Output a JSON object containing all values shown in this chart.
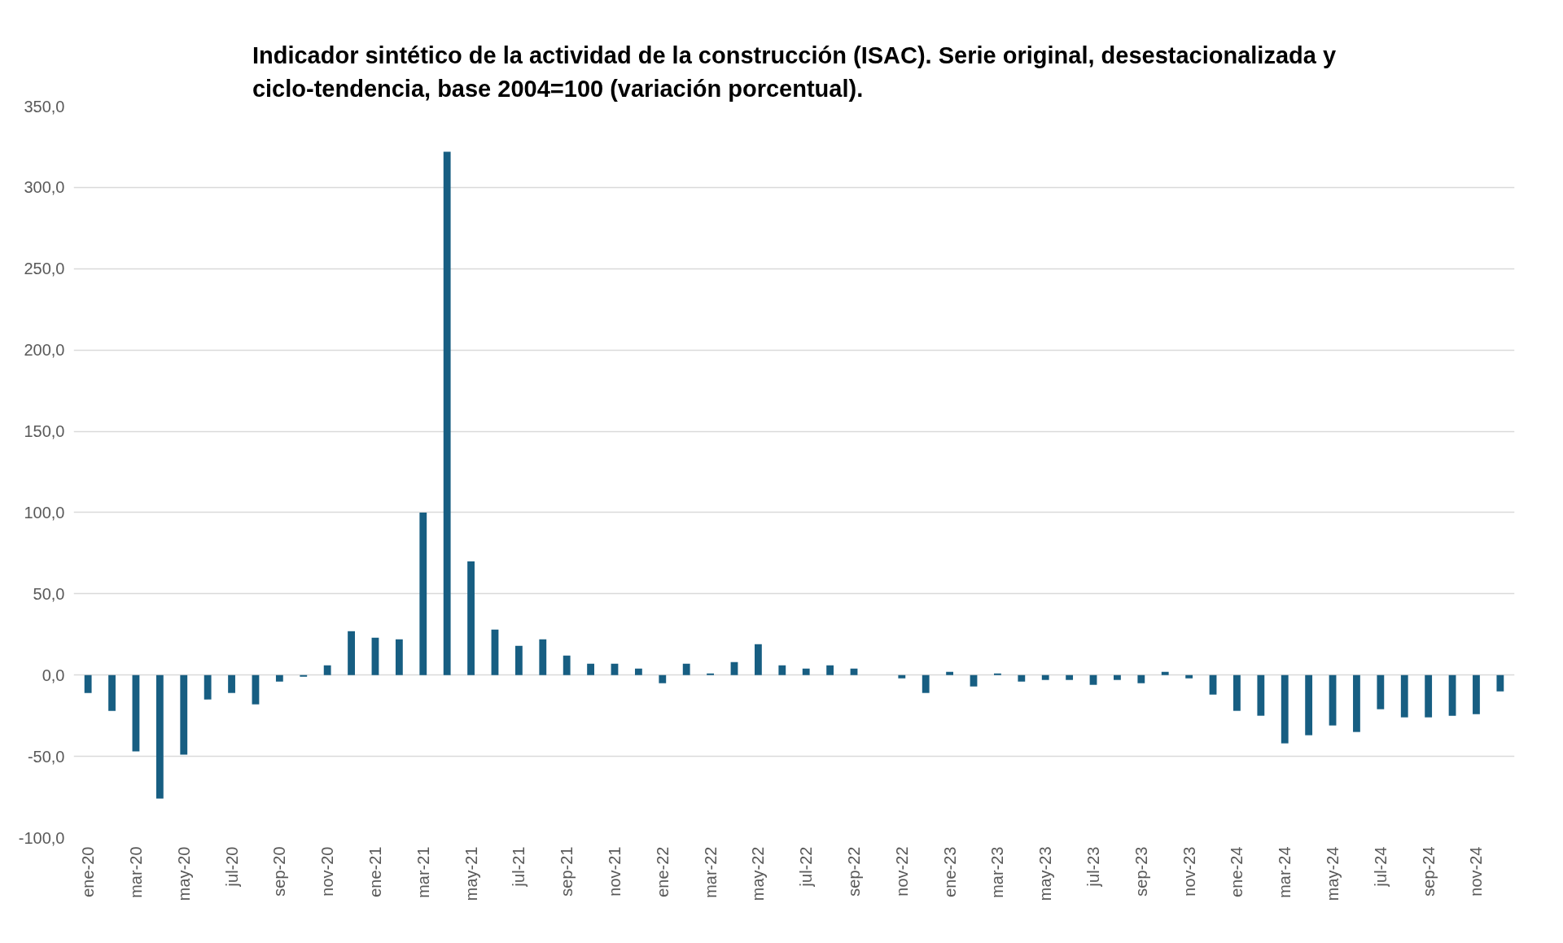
{
  "chart_data": {
    "type": "bar",
    "title": "Indicador sintético de la actividad de la construcción (ISAC). Serie original, desestacionalizada y ciclo-tendencia, base 2004=100 (variación porcentual).",
    "categories": [
      "ene-20",
      null,
      "mar-20",
      null,
      "may-20",
      null,
      "jul-20",
      null,
      "sep-20",
      null,
      "nov-20",
      null,
      "ene-21",
      null,
      "mar-21",
      null,
      "may-21",
      null,
      "jul-21",
      null,
      "sep-21",
      null,
      "nov-21",
      null,
      "ene-22",
      null,
      "mar-22",
      null,
      "may-22",
      null,
      "jul-22",
      null,
      "sep-22",
      null,
      "nov-22",
      null,
      "ene-23",
      null,
      "mar-23",
      null,
      "may-23",
      null,
      "jul-23",
      null,
      "sep-23",
      null,
      "nov-23",
      null,
      "ene-24",
      null,
      "mar-24",
      null,
      "may-24",
      null,
      "jul-24",
      null,
      "sep-24",
      null,
      "nov-24",
      null
    ],
    "values": [
      -11,
      -22,
      -47,
      -76,
      -49,
      -15,
      -11,
      -18,
      -4,
      -1,
      6,
      27,
      23,
      22,
      100,
      322,
      70,
      28,
      18,
      22,
      12,
      7,
      7,
      4,
      -5,
      7,
      1,
      8,
      19,
      6,
      4,
      6,
      4,
      0,
      -2,
      -11,
      2,
      -7,
      1,
      -4,
      -3,
      -3,
      -6,
      -3,
      -5,
      2,
      -2,
      -12,
      -22,
      -25,
      -42,
      -37,
      -31,
      -35,
      -21,
      -26,
      -26,
      -25,
      -24,
      -10
    ],
    "color": "#175e82",
    "ylim": [
      -100,
      350
    ],
    "yticks": [
      {
        "value": -100,
        "label": "-100,0"
      },
      {
        "value": -50,
        "label": "-50,0"
      },
      {
        "value": 0,
        "label": "0,0"
      },
      {
        "value": 50,
        "label": "50,0"
      },
      {
        "value": 100,
        "label": "100,0"
      },
      {
        "value": 150,
        "label": "150,0"
      },
      {
        "value": 200,
        "label": "200,0"
      },
      {
        "value": 250,
        "label": "250,0"
      },
      {
        "value": 300,
        "label": "300,0"
      },
      {
        "value": 350,
        "label": "350,0"
      }
    ],
    "grid": "y"
  }
}
